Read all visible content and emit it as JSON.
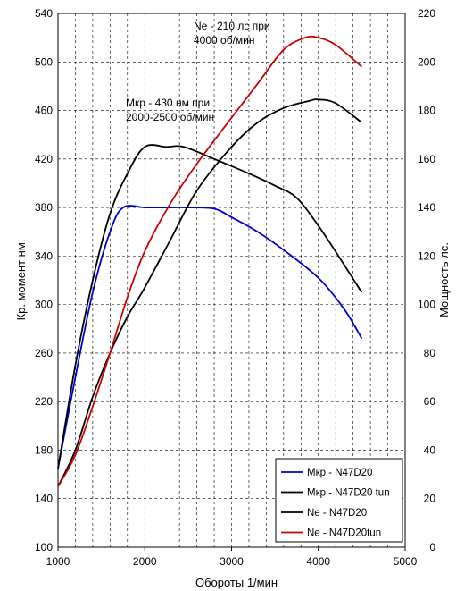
{
  "chart_data": {
    "type": "line",
    "xlabel": "Обороты 1/мин",
    "ylabel_left": "Кр. момент  нм.",
    "ylabel_right": "Мощность лс.",
    "xlim": [
      1000,
      5000
    ],
    "ylim_left": [
      100,
      540
    ],
    "ylim_right": [
      0,
      220
    ],
    "x_ticks": [
      1000,
      2000,
      3000,
      4000,
      5000
    ],
    "y_left_ticks": [
      100,
      140,
      180,
      220,
      260,
      300,
      340,
      380,
      420,
      460,
      500,
      540
    ],
    "y_right_ticks": [
      0,
      20,
      40,
      60,
      80,
      100,
      120,
      140,
      160,
      180,
      200,
      220
    ],
    "grid": true,
    "legend_position": "bottom-right",
    "series": [
      {
        "name": "Мкр - N47D20",
        "axis": "left",
        "color": "#0000cc",
        "x": [
          1000,
          1200,
          1400,
          1600,
          1750,
          2000,
          2200,
          2500,
          2800,
          3000,
          3300,
          3600,
          4000,
          4300,
          4500
        ],
        "y": [
          165,
          240,
          310,
          360,
          380,
          380,
          380,
          380,
          379,
          372,
          360,
          345,
          322,
          296,
          272
        ]
      },
      {
        "name": "Мкр - N47D20 tun",
        "axis": "left",
        "color": "#000000",
        "x": [
          1000,
          1200,
          1400,
          1600,
          1800,
          2000,
          2250,
          2450,
          2800,
          3200,
          3500,
          3750,
          4000,
          4250,
          4500
        ],
        "y": [
          165,
          250,
          320,
          375,
          408,
          430,
          430,
          430,
          420,
          408,
          398,
          388,
          365,
          338,
          310
        ]
      },
      {
        "name": "Ne -  N47D20",
        "axis": "right",
        "color": "#000000",
        "x": [
          1000,
          1200,
          1400,
          1600,
          1800,
          2000,
          2300,
          2600,
          3000,
          3300,
          3600,
          3900,
          4000,
          4200,
          4500
        ],
        "y": [
          25,
          40,
          62,
          80,
          95,
          107,
          127,
          147,
          165,
          175,
          181,
          184,
          184.5,
          183,
          175
        ]
      },
      {
        "name": "Ne -  N47D20tun",
        "axis": "right",
        "color": "#cc0000",
        "x": [
          1000,
          1200,
          1400,
          1600,
          1800,
          2000,
          2300,
          2600,
          3000,
          3300,
          3600,
          3850,
          4000,
          4200,
          4500
        ],
        "y": [
          25,
          38,
          58,
          80,
          103,
          122,
          142,
          158,
          177,
          191,
          205,
          210,
          210,
          207,
          198
        ]
      }
    ],
    "annotations": [
      {
        "lines": [
          "Ne - 210 лс при",
          "4000 об/мин"
        ]
      },
      {
        "lines": [
          "Мкр - 430 нм при",
          "2000-2500 об/мин"
        ]
      }
    ]
  }
}
